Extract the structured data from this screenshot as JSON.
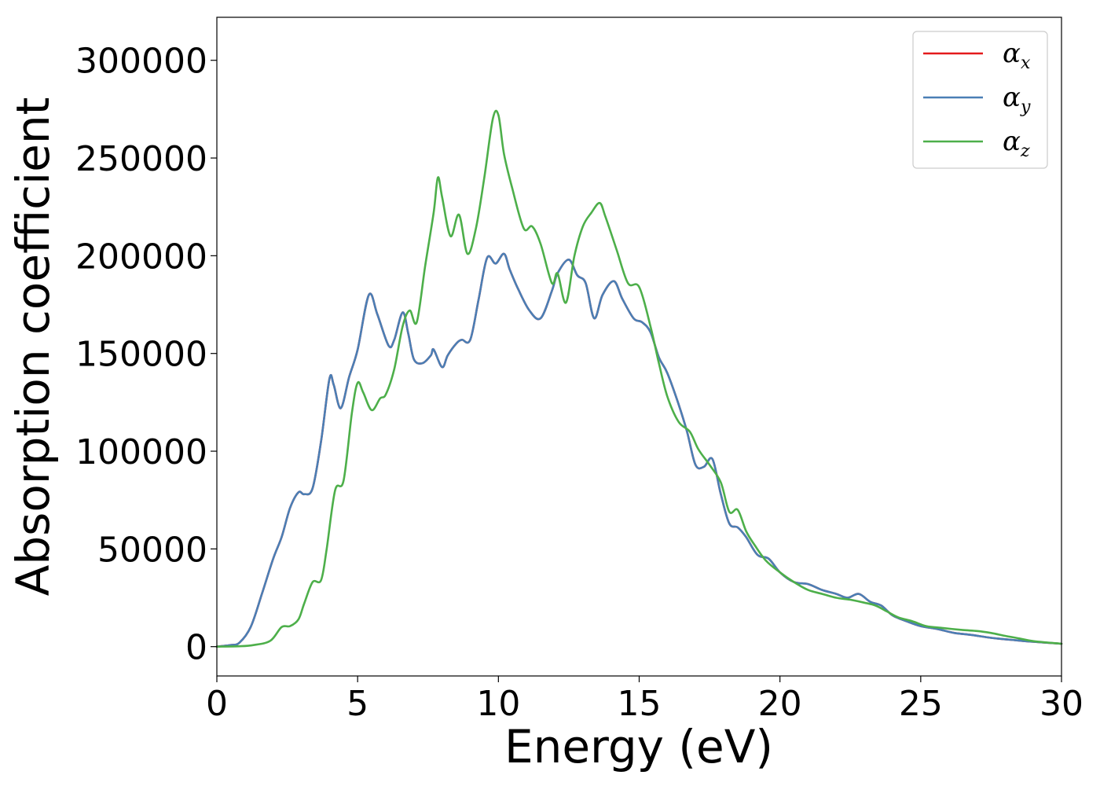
{
  "chart_data": {
    "type": "line",
    "title": "",
    "xlabel": "Energy (eV)",
    "ylabel": "Absorption coefficient",
    "xlim": [
      0,
      30
    ],
    "ylim": [
      -15000,
      322000
    ],
    "xticks": [
      0,
      5,
      10,
      15,
      20,
      25,
      30
    ],
    "yticks": [
      0,
      50000,
      100000,
      150000,
      200000,
      250000,
      300000
    ],
    "grid": false,
    "legend_position": "top-right",
    "series": [
      {
        "name": "α_x",
        "legend_base": "α",
        "legend_sub": "x",
        "color": "#e41a1c",
        "x": [
          0,
          0.5,
          0.8,
          1.2,
          1.6,
          2.0,
          2.3,
          2.6,
          2.9,
          3.1,
          3.4,
          3.7,
          4.0,
          4.15,
          4.4,
          4.7,
          5.0,
          5.4,
          5.7,
          6.1,
          6.3,
          6.6,
          6.8,
          7.0,
          7.3,
          7.6,
          7.7,
          8.0,
          8.2,
          8.5,
          8.7,
          9.0,
          9.3,
          9.6,
          9.9,
          10.2,
          10.4,
          10.7,
          11.1,
          11.5,
          11.9,
          12.1,
          12.5,
          12.8,
          13.1,
          13.4,
          13.7,
          14.1,
          14.4,
          14.8,
          15.1,
          15.4,
          15.7,
          16.0,
          16.4,
          16.7,
          17.0,
          17.3,
          17.6,
          17.9,
          18.2,
          18.5,
          18.8,
          19.2,
          19.6,
          20.0,
          20.5,
          21.0,
          21.5,
          22.0,
          22.4,
          22.8,
          23.2,
          23.6,
          24.0,
          24.5,
          25.0,
          25.6,
          26.2,
          26.8,
          27.5,
          28.2,
          29.0,
          30.0
        ],
        "y": [
          0,
          800,
          2000,
          10000,
          27000,
          45000,
          56000,
          71000,
          79000,
          78000,
          81000,
          105000,
          137000,
          134000,
          122000,
          138000,
          152000,
          180000,
          170000,
          154000,
          157000,
          171000,
          160000,
          147000,
          145000,
          149000,
          152000,
          143000,
          149000,
          155000,
          157000,
          157000,
          178000,
          199000,
          196000,
          201000,
          193000,
          183000,
          172000,
          168000,
          182000,
          191000,
          198000,
          190000,
          186000,
          168000,
          180000,
          187000,
          178000,
          168000,
          166000,
          161000,
          148000,
          140000,
          124000,
          110000,
          93000,
          92000,
          96000,
          78000,
          63000,
          61000,
          56000,
          47000,
          45000,
          38000,
          33000,
          32000,
          29000,
          27000,
          25000,
          27000,
          23000,
          21000,
          16000,
          13000,
          10500,
          9000,
          7000,
          6000,
          4500,
          3500,
          2500,
          1500
        ]
      },
      {
        "name": "α_y",
        "legend_base": "α",
        "legend_sub": "y",
        "color": "#4a7fb5",
        "x": [
          0,
          0.5,
          0.8,
          1.2,
          1.6,
          2.0,
          2.3,
          2.6,
          2.9,
          3.1,
          3.4,
          3.7,
          4.0,
          4.15,
          4.4,
          4.7,
          5.0,
          5.4,
          5.7,
          6.1,
          6.3,
          6.6,
          6.8,
          7.0,
          7.3,
          7.6,
          7.7,
          8.0,
          8.2,
          8.5,
          8.7,
          9.0,
          9.3,
          9.6,
          9.9,
          10.2,
          10.4,
          10.7,
          11.1,
          11.5,
          11.9,
          12.1,
          12.5,
          12.8,
          13.1,
          13.4,
          13.7,
          14.1,
          14.4,
          14.8,
          15.1,
          15.4,
          15.7,
          16.0,
          16.4,
          16.7,
          17.0,
          17.3,
          17.6,
          17.9,
          18.2,
          18.5,
          18.8,
          19.2,
          19.6,
          20.0,
          20.5,
          21.0,
          21.5,
          22.0,
          22.4,
          22.8,
          23.2,
          23.6,
          24.0,
          24.5,
          25.0,
          25.6,
          26.2,
          26.8,
          27.5,
          28.2,
          29.0,
          30.0
        ],
        "y": [
          0,
          800,
          2000,
          10000,
          27000,
          45000,
          56000,
          71000,
          79000,
          78000,
          81000,
          105000,
          137000,
          134000,
          122000,
          138000,
          152000,
          180000,
          170000,
          154000,
          157000,
          171000,
          160000,
          147000,
          145000,
          149000,
          152000,
          143000,
          149000,
          155000,
          157000,
          157000,
          178000,
          199000,
          196000,
          201000,
          193000,
          183000,
          172000,
          168000,
          182000,
          191000,
          198000,
          190000,
          186000,
          168000,
          180000,
          187000,
          178000,
          168000,
          166000,
          161000,
          148000,
          140000,
          124000,
          110000,
          93000,
          92000,
          96000,
          78000,
          63000,
          61000,
          56000,
          47000,
          45000,
          38000,
          33000,
          32000,
          29000,
          27000,
          25000,
          27000,
          23000,
          21000,
          16000,
          13000,
          10500,
          9000,
          7000,
          6000,
          4500,
          3500,
          2500,
          1500
        ]
      },
      {
        "name": "α_z",
        "legend_base": "α",
        "legend_sub": "z",
        "color": "#4daf4a",
        "x": [
          0,
          0.8,
          1.3,
          1.9,
          2.3,
          2.6,
          2.9,
          3.1,
          3.4,
          3.7,
          3.9,
          4.2,
          4.5,
          4.8,
          5.0,
          5.2,
          5.5,
          5.8,
          6.0,
          6.3,
          6.6,
          6.85,
          7.1,
          7.4,
          7.7,
          7.85,
          8.0,
          8.3,
          8.6,
          8.9,
          9.2,
          9.5,
          9.8,
          10.0,
          10.2,
          10.5,
          10.9,
          11.2,
          11.5,
          11.9,
          12.1,
          12.4,
          12.7,
          13.0,
          13.3,
          13.6,
          13.8,
          14.2,
          14.6,
          15.0,
          15.4,
          15.7,
          16.0,
          16.4,
          16.8,
          17.1,
          17.5,
          17.9,
          18.2,
          18.5,
          18.8,
          19.1,
          19.5,
          20.0,
          20.5,
          21.0,
          21.5,
          22.0,
          22.5,
          23.0,
          23.4,
          23.8,
          24.2,
          24.7,
          25.2,
          25.8,
          26.5,
          27.0,
          27.5,
          28.0,
          28.5,
          29.0,
          30.0
        ],
        "y": [
          0,
          200,
          800,
          3000,
          10000,
          10500,
          14000,
          22000,
          33000,
          34000,
          50000,
          80000,
          85000,
          120000,
          135000,
          130000,
          121000,
          127000,
          129000,
          142000,
          164000,
          172000,
          166000,
          195000,
          222000,
          240000,
          230000,
          210000,
          221000,
          201000,
          214000,
          240000,
          270000,
          272000,
          252000,
          234000,
          214000,
          215000,
          206000,
          186000,
          191000,
          176000,
          200000,
          215000,
          222000,
          227000,
          220000,
          203000,
          186000,
          184000,
          164000,
          145000,
          128000,
          115000,
          110000,
          101000,
          93000,
          84000,
          69000,
          70000,
          59000,
          52000,
          44000,
          38000,
          33000,
          29000,
          27000,
          25000,
          24000,
          22500,
          21000,
          18000,
          15000,
          13000,
          10500,
          9500,
          8500,
          8000,
          7000,
          5500,
          4200,
          2800,
          1500
        ]
      }
    ]
  }
}
